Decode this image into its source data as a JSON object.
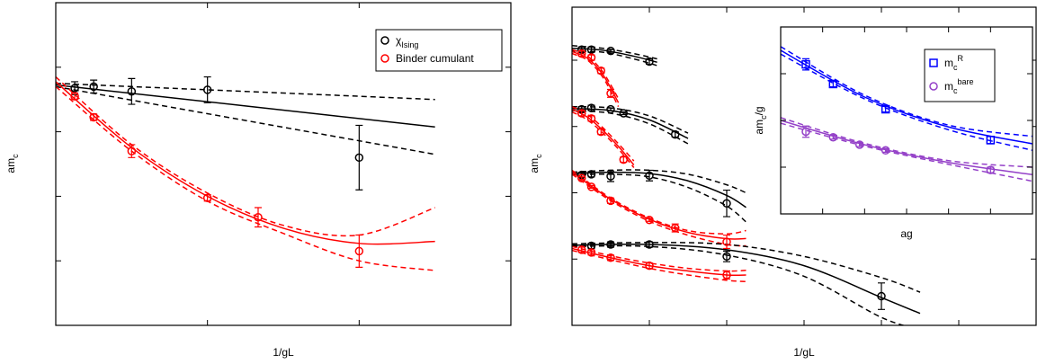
{
  "chart_data": [
    {
      "type": "scatter",
      "xlabel": "1/gL",
      "ylabel": {
        "base": "am",
        "sub": "c"
      },
      "xlim": [
        0,
        1.5
      ],
      "ylim": [
        0.04,
        0.14
      ],
      "xticks": [
        0,
        0.5,
        1,
        1.5
      ],
      "yticks": [
        0.04,
        0.06,
        0.08,
        0.1,
        0.12,
        0.14
      ],
      "legend": "upper right",
      "series": [
        {
          "name": {
            "base": "χ",
            "sub": "Ising"
          },
          "color": "#000000",
          "marker": "circle",
          "x": [
            0.0625,
            0.125,
            0.25,
            0.5,
            1
          ],
          "values": [
            0.1135,
            0.114,
            0.1125,
            0.113,
            0.092
          ],
          "errors": [
            0.002,
            0.002,
            0.004,
            0.004,
            0.01
          ]
        },
        {
          "name": "Binder cumulant",
          "color": "#ff0000",
          "marker": "circle",
          "x": [
            0.0625,
            0.125,
            0.25,
            0.5,
            0.667,
            1
          ],
          "values": [
            0.111,
            0.1045,
            0.094,
            0.0795,
            0.0735,
            0.063
          ],
          "errors": [
            0.001,
            0.001,
            0.002,
            0.001,
            0.003,
            0.005
          ]
        },
        {
          "color": "#000000",
          "line": "solid",
          "x": [
            0,
            1.25
          ],
          "values": [
            0.1145,
            0.1015
          ]
        },
        {
          "color": "#000000",
          "line": "dashed",
          "x": [
            0,
            1.25
          ],
          "values": [
            0.115,
            0.11
          ]
        },
        {
          "color": "#000000",
          "line": "dashed",
          "x": [
            0,
            1.25
          ],
          "values": [
            0.114,
            0.093
          ]
        },
        {
          "color": "#ff0000",
          "line": "solid",
          "x": [
            0,
            0.25,
            0.5,
            0.75,
            1,
            1.25
          ],
          "values": [
            0.1155,
            0.0951,
            0.08,
            0.0701,
            0.0654,
            0.066
          ]
        },
        {
          "color": "#ff0000",
          "line": "dashed",
          "x": [
            0,
            0.25,
            0.5,
            0.75,
            1,
            1.25
          ],
          "values": [
            0.117,
            0.096,
            0.081,
            0.071,
            0.068,
            0.0765
          ]
        },
        {
          "color": "#ff0000",
          "line": "dashed",
          "x": [
            0,
            0.25,
            0.5,
            0.75,
            1,
            1.25
          ],
          "values": [
            0.114,
            0.094,
            0.0785,
            0.0685,
            0.06,
            0.057
          ]
        }
      ]
    },
    {
      "type": "scatter",
      "xlabel": "1/gL",
      "ylabel": {
        "base": "am",
        "sub": "c"
      },
      "xlim": [
        0,
        3
      ],
      "ylim": [
        0,
        0.24
      ],
      "xticks": [
        0,
        0.5,
        1,
        1.5,
        2,
        2.5,
        3
      ],
      "yticks": [
        0,
        0.05,
        0.1,
        0.15,
        0.2
      ],
      "series": [
        {
          "color": "#000000",
          "marker": "circle",
          "x": [
            0.0625,
            0.125,
            0.25,
            0.5
          ],
          "values": [
            0.208,
            0.208,
            0.207,
            0.199
          ],
          "errors": [
            0.002,
            0.002,
            0.001,
            0.002
          ]
        },
        {
          "color": "#ff0000",
          "marker": "circle",
          "x": [
            0.0625,
            0.125,
            0.1875,
            0.25
          ],
          "values": [
            0.205,
            0.202,
            0.192,
            0.175
          ],
          "errors": [
            0.002,
            0.002,
            0.002,
            0.003
          ]
        },
        {
          "color": "#000000",
          "marker": "circle",
          "x": [
            0.0625,
            0.125,
            0.25,
            0.333,
            0.667
          ],
          "values": [
            0.163,
            0.164,
            0.163,
            0.16,
            0.144
          ],
          "errors": [
            0.002,
            0.002,
            0.001,
            0.001,
            0.002
          ]
        },
        {
          "color": "#ff0000",
          "marker": "circle",
          "x": [
            0.0625,
            0.125,
            0.1875,
            0.333
          ],
          "values": [
            0.16,
            0.156,
            0.146,
            0.125
          ],
          "errors": [
            0.002,
            0.002,
            0.002,
            0.002
          ]
        },
        {
          "color": "#000000",
          "marker": "circle",
          "x": [
            0.0625,
            0.125,
            0.25,
            0.5,
            1
          ],
          "values": [
            0.1135,
            0.114,
            0.1125,
            0.113,
            0.092
          ],
          "errors": [
            0.002,
            0.002,
            0.004,
            0.004,
            0.01
          ]
        },
        {
          "color": "#ff0000",
          "marker": "circle",
          "x": [
            0.0625,
            0.125,
            0.25,
            0.5,
            0.667,
            1
          ],
          "values": [
            0.111,
            0.1045,
            0.094,
            0.0795,
            0.0735,
            0.063
          ],
          "errors": [
            0.001,
            0.001,
            0.002,
            0.001,
            0.003,
            0.005
          ]
        },
        {
          "color": "#000000",
          "marker": "circle",
          "x": [
            0.125,
            0.25,
            0.5,
            1,
            2
          ],
          "values": [
            0.06,
            0.061,
            0.061,
            0.052,
            0.022
          ],
          "errors": [
            0.002,
            0.002,
            0.002,
            0.004,
            0.01
          ]
        },
        {
          "color": "#ff0000",
          "marker": "circle",
          "x": [
            0.0625,
            0.125,
            0.25,
            0.5,
            1
          ],
          "values": [
            0.057,
            0.055,
            0.051,
            0.045,
            0.038
          ],
          "errors": [
            0.002,
            0.002,
            0.002,
            0.002,
            0.003
          ]
        },
        {
          "color": "#000000",
          "line": "solid",
          "x": [
            0,
            0.2,
            0.4,
            0.55
          ],
          "values": [
            0.209,
            0.2075,
            0.203,
            0.1985
          ]
        },
        {
          "color": "#000000",
          "line": "dashed",
          "x": [
            0,
            0.2,
            0.4,
            0.55
          ],
          "values": [
            0.211,
            0.209,
            0.205,
            0.201
          ]
        },
        {
          "color": "#000000",
          "line": "dashed",
          "x": [
            0,
            0.2,
            0.4,
            0.55
          ],
          "values": [
            0.207,
            0.206,
            0.201,
            0.196
          ]
        },
        {
          "color": "#ff0000",
          "line": "solid",
          "x": [
            0,
            0.1,
            0.2,
            0.3
          ],
          "values": [
            0.2065,
            0.2015,
            0.189,
            0.168
          ]
        },
        {
          "color": "#ff0000",
          "line": "dashed",
          "x": [
            0,
            0.1,
            0.2,
            0.3
          ],
          "values": [
            0.208,
            0.203,
            0.191,
            0.171
          ]
        },
        {
          "color": "#ff0000",
          "line": "dashed",
          "x": [
            0,
            0.1,
            0.2,
            0.3
          ],
          "values": [
            0.205,
            0.2,
            0.187,
            0.165
          ]
        },
        {
          "color": "#000000",
          "line": "solid",
          "x": [
            0,
            0.25,
            0.5,
            0.75
          ],
          "values": [
            0.1635,
            0.162,
            0.155,
            0.141
          ]
        },
        {
          "color": "#000000",
          "line": "dashed",
          "x": [
            0,
            0.25,
            0.5,
            0.75
          ],
          "values": [
            0.165,
            0.164,
            0.158,
            0.145
          ]
        },
        {
          "color": "#000000",
          "line": "dashed",
          "x": [
            0,
            0.25,
            0.5,
            0.75
          ],
          "values": [
            0.162,
            0.16,
            0.152,
            0.137
          ]
        },
        {
          "color": "#ff0000",
          "line": "solid",
          "x": [
            0,
            0.1,
            0.2,
            0.3,
            0.4
          ],
          "values": [
            0.163,
            0.157,
            0.147,
            0.135,
            0.121
          ]
        },
        {
          "color": "#ff0000",
          "line": "dashed",
          "x": [
            0,
            0.1,
            0.2,
            0.3,
            0.4
          ],
          "values": [
            0.165,
            0.159,
            0.149,
            0.137,
            0.124
          ]
        },
        {
          "color": "#ff0000",
          "line": "dashed",
          "x": [
            0,
            0.1,
            0.2,
            0.3,
            0.4
          ],
          "values": [
            0.161,
            0.155,
            0.145,
            0.133,
            0.119
          ]
        },
        {
          "color": "#000000",
          "line": "solid",
          "x": [
            0,
            0.25,
            0.5,
            0.75,
            1,
            1.125
          ],
          "values": [
            0.1145,
            0.1155,
            0.1145,
            0.109,
            0.098,
            0.089
          ]
        },
        {
          "color": "#000000",
          "line": "dashed",
          "x": [
            0,
            0.25,
            0.5,
            0.75,
            1,
            1.125
          ],
          "values": [
            0.1155,
            0.117,
            0.117,
            0.114,
            0.106,
            0.1
          ]
        },
        {
          "color": "#000000",
          "line": "dashed",
          "x": [
            0,
            0.25,
            0.5,
            0.75,
            1,
            1.125
          ],
          "values": [
            0.1135,
            0.114,
            0.112,
            0.104,
            0.09,
            0.078
          ]
        },
        {
          "color": "#ff0000",
          "line": "solid",
          "x": [
            0,
            0.25,
            0.5,
            0.75,
            1,
            1.125
          ],
          "values": [
            0.1155,
            0.0951,
            0.08,
            0.0701,
            0.0654,
            0.0655
          ]
        },
        {
          "color": "#ff0000",
          "line": "dashed",
          "x": [
            0,
            0.25,
            0.5,
            0.75,
            1,
            1.125
          ],
          "values": [
            0.117,
            0.096,
            0.081,
            0.0715,
            0.069,
            0.0715
          ]
        },
        {
          "color": "#ff0000",
          "line": "dashed",
          "x": [
            0,
            0.25,
            0.5,
            0.75,
            1,
            1.125
          ],
          "values": [
            0.114,
            0.094,
            0.0785,
            0.068,
            0.061,
            0.06
          ]
        },
        {
          "color": "#000000",
          "line": "solid",
          "x": [
            0,
            0.5,
            1,
            1.5,
            2,
            2.25
          ],
          "values": [
            0.0605,
            0.061,
            0.057,
            0.045,
            0.021,
            0.009
          ]
        },
        {
          "color": "#000000",
          "line": "dashed",
          "x": [
            0,
            0.5,
            1,
            1.5,
            2,
            2.25
          ],
          "values": [
            0.0615,
            0.0625,
            0.061,
            0.052,
            0.036,
            0.025
          ]
        },
        {
          "color": "#000000",
          "line": "dashed",
          "x": [
            0,
            0.5,
            1,
            1.5,
            2,
            2.25
          ],
          "values": [
            0.0595,
            0.0595,
            0.053,
            0.037,
            0.006,
            -0.003
          ]
        },
        {
          "color": "#ff0000",
          "line": "solid",
          "x": [
            0,
            0.25,
            0.5,
            0.75,
            1,
            1.125
          ],
          "values": [
            0.058,
            0.051,
            0.045,
            0.041,
            0.038,
            0.038
          ]
        },
        {
          "color": "#ff0000",
          "line": "dashed",
          "x": [
            0,
            0.25,
            0.5,
            0.75,
            1,
            1.125
          ],
          "values": [
            0.0595,
            0.0525,
            0.047,
            0.043,
            0.041,
            0.0415
          ]
        },
        {
          "color": "#ff0000",
          "line": "dashed",
          "x": [
            0,
            0.25,
            0.5,
            0.75,
            1,
            1.125
          ],
          "values": [
            0.0565,
            0.0495,
            0.043,
            0.038,
            0.034,
            0.033
          ]
        }
      ]
    },
    {
      "type": "scatter",
      "xlabel": "ag",
      "ylabel": {
        "base": "am",
        "sub": "c",
        "after": "/g"
      },
      "xlim": [
        0,
        0.3
      ],
      "ylim": [
        1,
        3
      ],
      "xticks": [
        0,
        0.05,
        0.1,
        0.15,
        0.2,
        0.25
      ],
      "yticks": [
        1,
        1.5,
        2,
        2.5,
        3
      ],
      "legend": "upper right",
      "series": [
        {
          "name": {
            "base": "m",
            "sub": "c",
            "sup": "R"
          },
          "color": "#0000ff",
          "marker": "square",
          "x": [
            0.03,
            0.0625,
            0.125,
            0.25
          ],
          "values": [
            2.6,
            2.39,
            2.12,
            1.79
          ],
          "errors": [
            0.06,
            0.03,
            0.03,
            0.04
          ]
        },
        {
          "name": {
            "base": "m",
            "sub": "c",
            "sup": "bare"
          },
          "color": "#9440c8",
          "marker": "circle",
          "x": [
            0.03,
            0.0625,
            0.094,
            0.125,
            0.25
          ],
          "values": [
            1.88,
            1.82,
            1.74,
            1.68,
            1.47
          ],
          "errors": [
            0.06,
            0.02,
            0.02,
            0.02,
            0.03
          ]
        },
        {
          "color": "#0000ff",
          "line": "solid",
          "x": [
            0,
            0.1,
            0.2,
            0.3
          ],
          "values": [
            2.75,
            2.25,
            1.93,
            1.75
          ]
        },
        {
          "color": "#0000ff",
          "line": "dashed",
          "x": [
            0,
            0.1,
            0.2,
            0.3
          ],
          "values": [
            2.79,
            2.27,
            1.95,
            1.83
          ]
        },
        {
          "color": "#0000ff",
          "line": "dashed",
          "x": [
            0,
            0.1,
            0.2,
            0.3
          ],
          "values": [
            2.71,
            2.23,
            1.9,
            1.68
          ]
        },
        {
          "color": "#9440c8",
          "line": "solid",
          "x": [
            0,
            0.1,
            0.2,
            0.3
          ],
          "values": [
            2.0,
            1.74,
            1.55,
            1.42
          ]
        },
        {
          "color": "#9440c8",
          "line": "dashed",
          "x": [
            0,
            0.1,
            0.2,
            0.3
          ],
          "values": [
            2.03,
            1.755,
            1.57,
            1.5
          ]
        },
        {
          "color": "#9440c8",
          "line": "dashed",
          "x": [
            0,
            0.1,
            0.2,
            0.3
          ],
          "values": [
            1.97,
            1.725,
            1.53,
            1.35
          ]
        }
      ]
    }
  ]
}
